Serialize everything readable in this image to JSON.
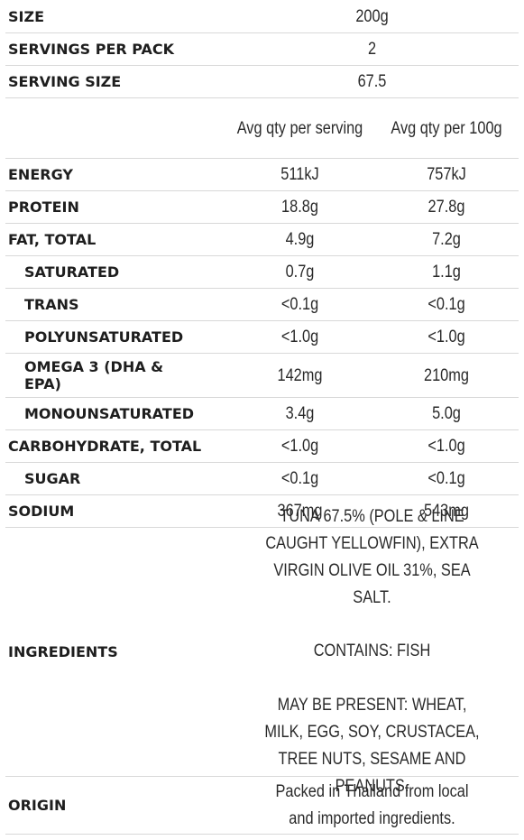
{
  "rows": [
    {
      "label": "SIZE",
      "span": "200g"
    },
    {
      "label": "SERVINGS PER PACK",
      "span": "2"
    },
    {
      "label": "SERVING SIZE",
      "span": "67.5"
    },
    {
      "label": "",
      "col1": "Avg qty per serving",
      "col2": "Avg qty per 100g"
    },
    {
      "label": "ENERGY",
      "col1": "511kJ",
      "col2": "757kJ"
    },
    {
      "label": "PROTEIN",
      "col1": "18.8g",
      "col2": "27.8g"
    },
    {
      "label": "FAT, TOTAL",
      "col1": "4.9g",
      "col2": "7.2g"
    },
    {
      "label": "SATURATED",
      "col1": "0.7g",
      "col2": "1.1g"
    },
    {
      "label": "TRANS",
      "col1": "<0.1g",
      "col2": "<0.1g"
    },
    {
      "label": "POLYUNSATURATED",
      "col1": "<1.0g",
      "col2": "<1.0g"
    },
    {
      "label": "OMEGA 3 (DHA & EPA)",
      "col1": "142mg",
      "col2": "210mg"
    },
    {
      "label": "MONOUNSATURATED",
      "col1": "3.4g",
      "col2": "5.0g"
    },
    {
      "label": "CARBOHYDRATE, TOTAL",
      "col1": "<1.0g",
      "col2": "<1.0g"
    },
    {
      "label": "SUGAR",
      "col1": "<0.1g",
      "col2": "<0.1g"
    },
    {
      "label": "SODIUM",
      "col1": "367mg",
      "col2": "543mg"
    }
  ],
  "ingredients": {
    "label": "INGREDIENTS",
    "text": "TUNA 67.5% (POLE & LINE CAUGHT YELLOWFIN), EXTRA VIRGIN OLIVE OIL 31%, SEA SALT.",
    "contains": "CONTAINS: FISH",
    "may_contain": "MAY BE PRESENT: WHEAT, MILK, EGG, SOY, CRUSTACEA, TREE NUTS, SESAME AND PEANUTS."
  },
  "origin": {
    "label": "ORIGIN",
    "text": "Packed in Thailand from local and imported ingredients."
  }
}
